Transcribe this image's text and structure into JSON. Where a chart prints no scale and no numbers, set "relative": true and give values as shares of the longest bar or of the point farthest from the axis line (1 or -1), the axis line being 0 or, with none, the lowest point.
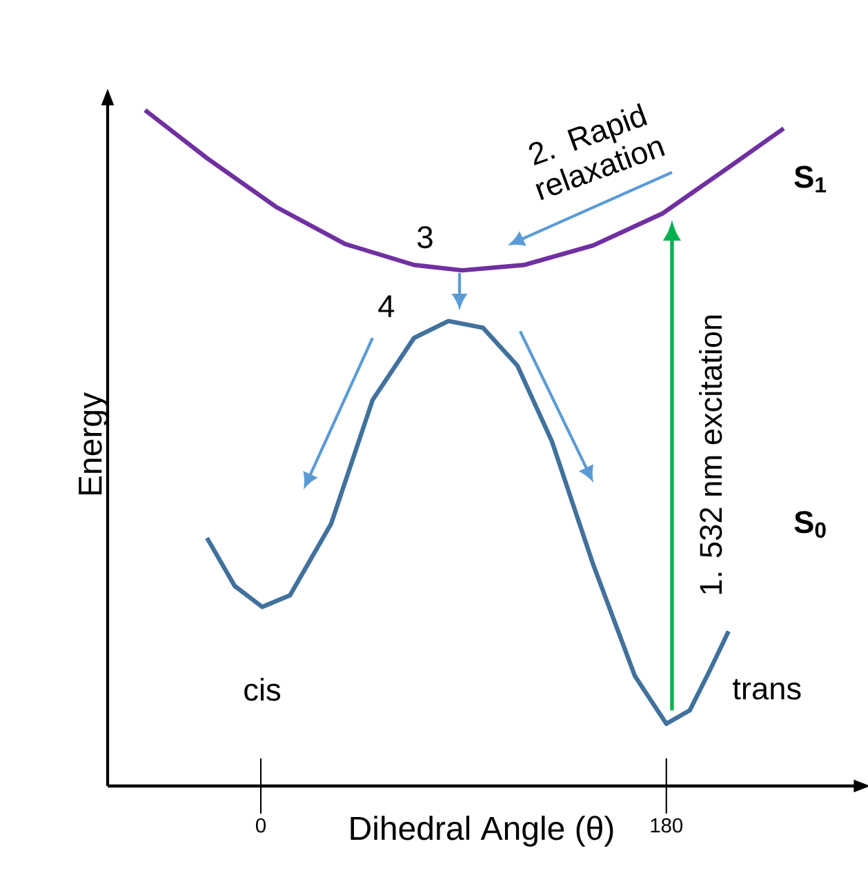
{
  "chart_data": {
    "type": "line",
    "relative": true,
    "xlabel": "Dihedral Angle (θ)",
    "ylabel": "Energy",
    "xlim": [
      -68,
      264
    ],
    "xticks": [
      0,
      180
    ],
    "series": [
      {
        "name": "S$_{1}$",
        "color": "#7030a0",
        "x": [
          -51.4,
          -23.9,
          6.7,
          37.4,
          68.0,
          89.4,
          117.0,
          147.6,
          178.2,
          208.8,
          232.1
        ],
        "values": [
          1.0,
          0.929,
          0.857,
          0.802,
          0.771,
          0.763,
          0.771,
          0.8,
          0.847,
          0.918,
          0.973
        ]
      },
      {
        "name": "S$_{0}$",
        "color": "#41719c",
        "x": [
          -23.9,
          -11.6,
          0.6,
          12.9,
          31.2,
          49.6,
          68.0,
          83.3,
          98.6,
          113.9,
          129.2,
          147.6,
          166.0,
          180.0,
          190.4,
          199.6,
          207.6
        ],
        "values": [
          0.367,
          0.296,
          0.265,
          0.282,
          0.388,
          0.571,
          0.663,
          0.688,
          0.678,
          0.622,
          0.51,
          0.327,
          0.163,
          0.092,
          0.112,
          0.173,
          0.229
        ]
      }
    ],
    "annotations": [
      "2. Rapid relaxation",
      "3",
      "4",
      "1. 532 nm excitation",
      "cis",
      "trans"
    ]
  }
}
